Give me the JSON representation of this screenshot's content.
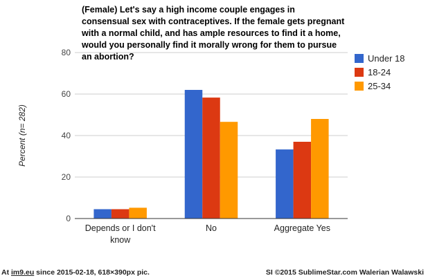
{
  "chart_data": {
    "type": "bar",
    "title": "(Female) Let's say a high income couple engages in consensual sex with contraceptives. If the female gets pregnant with a normal child, and has ample resources to find it a home, would you personally find it morally wrong for them to pursue an abortion?",
    "ylabel": "Percent (n= 282)",
    "xlabel": "",
    "categories": [
      "Depends or I don't know",
      "No",
      "Aggregate Yes"
    ],
    "category_lines": [
      [
        "Depends or I don't",
        "know"
      ],
      [
        "No"
      ],
      [
        "Aggregate Yes"
      ]
    ],
    "ylim": [
      0,
      80
    ],
    "yticks": [
      "0",
      "20",
      "40",
      "60",
      "80"
    ],
    "series": [
      {
        "name": "Under 18",
        "color": "#3366cc",
        "values": [
          4.5,
          62,
          33.3
        ]
      },
      {
        "name": "18-24",
        "color": "#dc3912",
        "values": [
          4.5,
          58.3,
          37
        ]
      },
      {
        "name": "25-34",
        "color": "#ff9900",
        "values": [
          5.2,
          46.6,
          48
        ]
      }
    ],
    "grid": true,
    "legend_position": "right"
  },
  "footer": {
    "left_prefix": "At ",
    "left_link": "im9.eu",
    "left_suffix": " since 2015-02-18, 618×390px pic.",
    "right": "SI ©2015 SublimeStar.com Walerian Walawski"
  }
}
